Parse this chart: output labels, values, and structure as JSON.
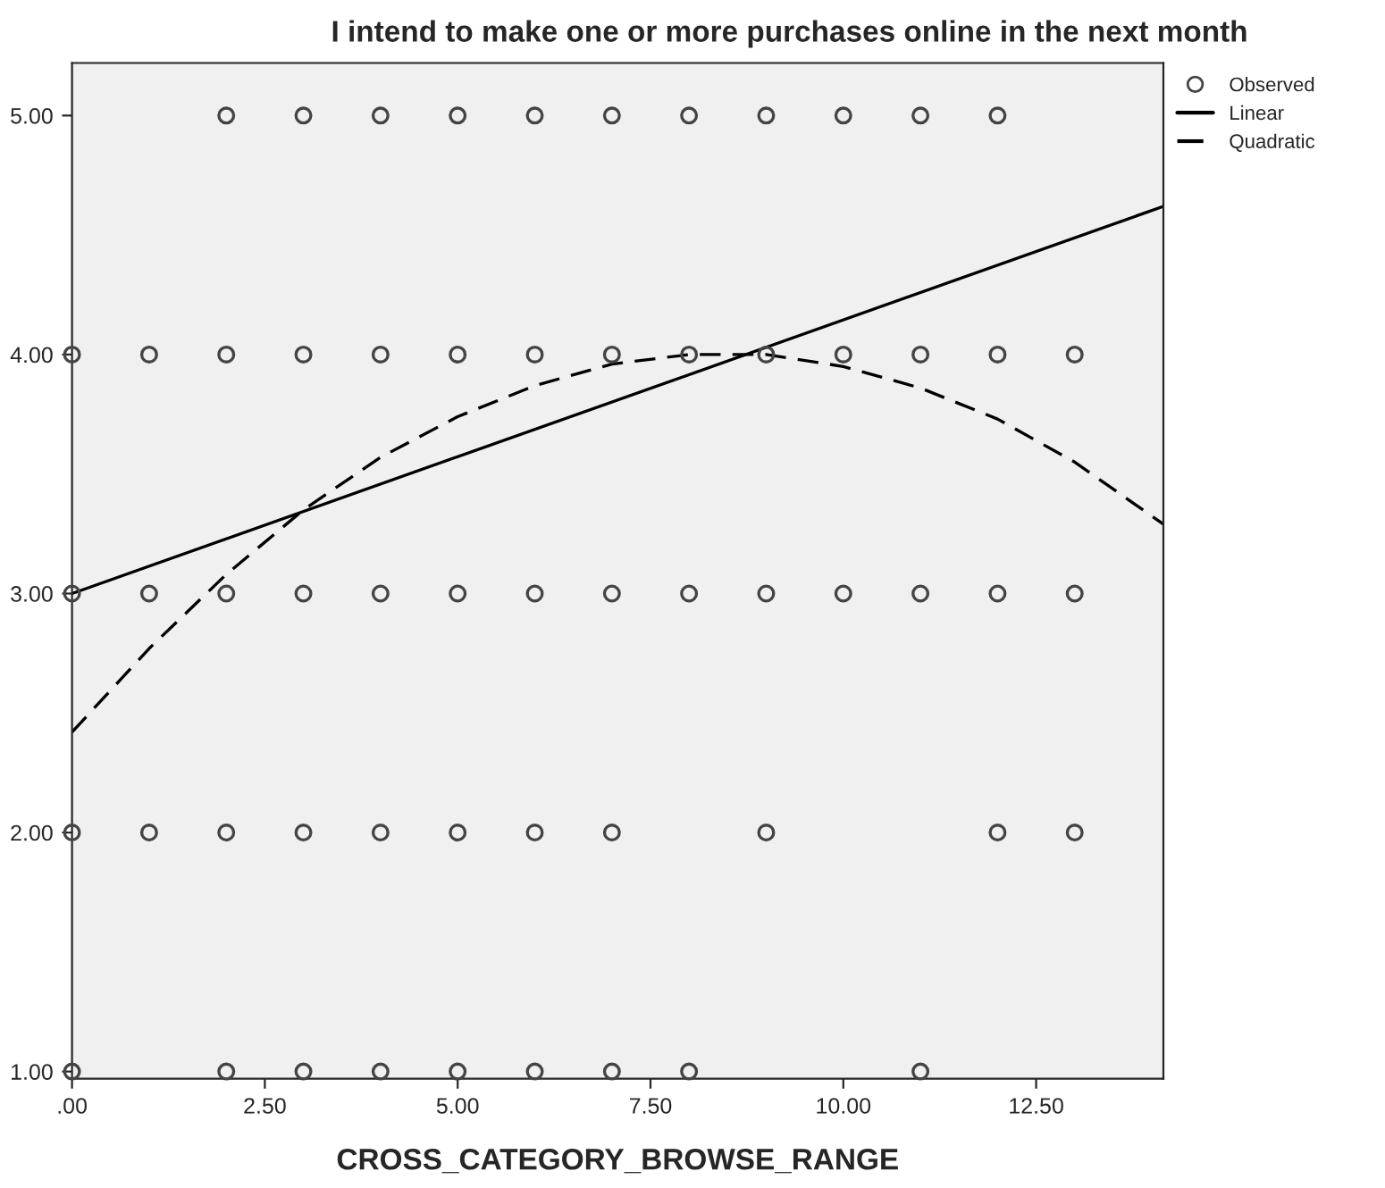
{
  "chart_data": {
    "type": "scatter",
    "title": "I intend to make one or more purchases online in the next month",
    "xlabel": "CROSS_CATEGORY_BROWSE_RANGE",
    "xlim": [
      0,
      14.15
    ],
    "ylim": [
      0.97,
      5.22
    ],
    "xticks": [
      {
        "value": 0,
        "label": ".00"
      },
      {
        "value": 2.5,
        "label": "2.50"
      },
      {
        "value": 5,
        "label": "5.00"
      },
      {
        "value": 7.5,
        "label": "7.50"
      },
      {
        "value": 10,
        "label": "10.00"
      },
      {
        "value": 12.5,
        "label": "12.50"
      }
    ],
    "yticks": [
      {
        "value": 1,
        "label": "1.00"
      },
      {
        "value": 2,
        "label": "2.00"
      },
      {
        "value": 3,
        "label": "3.00"
      },
      {
        "value": 4,
        "label": "4.00"
      },
      {
        "value": 5,
        "label": "5.00"
      }
    ],
    "grid": false,
    "legend": "top right",
    "series": [
      {
        "name": "Observed",
        "marker": "circle",
        "color": "#444444",
        "x": [
          2,
          3,
          4,
          5,
          6,
          7,
          8,
          9,
          10,
          11,
          12,
          0,
          1,
          2,
          3,
          4,
          5,
          6,
          7,
          8,
          9,
          10,
          11,
          12,
          13,
          0,
          1,
          2,
          3,
          4,
          5,
          6,
          7,
          8,
          9,
          10,
          11,
          12,
          13,
          0,
          1,
          2,
          3,
          4,
          5,
          6,
          7,
          9,
          12,
          13,
          0,
          2,
          3,
          4,
          5,
          6,
          7,
          8,
          11
        ],
        "values": [
          5,
          5,
          5,
          5,
          5,
          5,
          5,
          5,
          5,
          5,
          5,
          4,
          4,
          4,
          4,
          4,
          4,
          4,
          4,
          4,
          4,
          4,
          4,
          4,
          4,
          3,
          3,
          3,
          3,
          3,
          3,
          3,
          3,
          3,
          3,
          3,
          3,
          3,
          3,
          2,
          2,
          2,
          2,
          2,
          2,
          2,
          2,
          2,
          2,
          2,
          1,
          1,
          1,
          1,
          1,
          1,
          1,
          1,
          1
        ]
      },
      {
        "name": "Linear",
        "type": "line",
        "line_style": "solid",
        "color": "#000000",
        "x": [
          0,
          14.15
        ],
        "values": [
          3.0,
          4.62
        ]
      },
      {
        "name": "Quadratic",
        "type": "line",
        "line_style": "dashed",
        "color": "#000000",
        "x": [
          0,
          1,
          2,
          3,
          4,
          5,
          6,
          7,
          8,
          9,
          10,
          11,
          12,
          13,
          14.15
        ],
        "values": [
          2.42,
          2.77,
          3.08,
          3.35,
          3.57,
          3.74,
          3.87,
          3.96,
          4.0,
          4.0,
          3.95,
          3.86,
          3.73,
          3.55,
          3.29
        ]
      }
    ]
  }
}
